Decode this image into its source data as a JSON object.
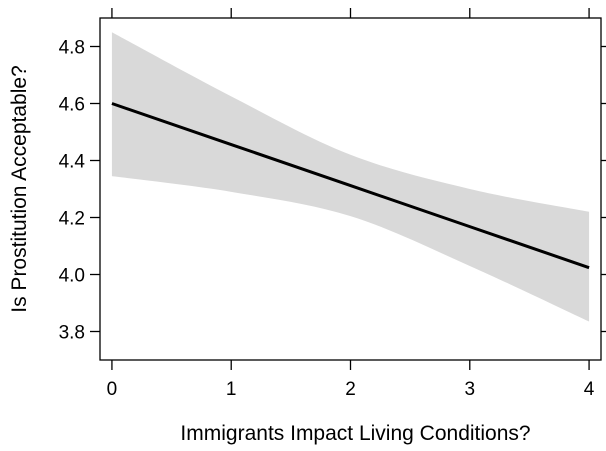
{
  "chart_data": {
    "type": "line",
    "title": "",
    "xlabel": "Immigrants Impact Living Conditions?",
    "ylabel": "Is Prostitution Acceptable?",
    "xlim": [
      -0.1,
      4.1
    ],
    "ylim": [
      3.7,
      4.9
    ],
    "x_ticks": [
      0,
      1,
      2,
      3,
      4
    ],
    "x_tick_labels": [
      "0",
      "1",
      "2",
      "3",
      "4"
    ],
    "y_ticks": [
      3.8,
      4.0,
      4.2,
      4.4,
      4.6,
      4.8
    ],
    "y_tick_labels": [
      "3.8",
      "4.0",
      "4.2",
      "4.4",
      "4.6",
      "4.8"
    ],
    "grid": false,
    "legend": "none",
    "series": [
      {
        "x": [
          0,
          1,
          2,
          3,
          4
        ],
        "values": [
          4.6,
          4.456,
          4.312,
          4.168,
          4.024
        ],
        "ci_lower": [
          4.345,
          4.29,
          4.205,
          4.03,
          3.835
        ],
        "ci_upper": [
          4.85,
          4.625,
          4.42,
          4.3,
          4.22
        ],
        "line_color": "#000000",
        "band_color": "#d9d9d9"
      }
    ]
  }
}
